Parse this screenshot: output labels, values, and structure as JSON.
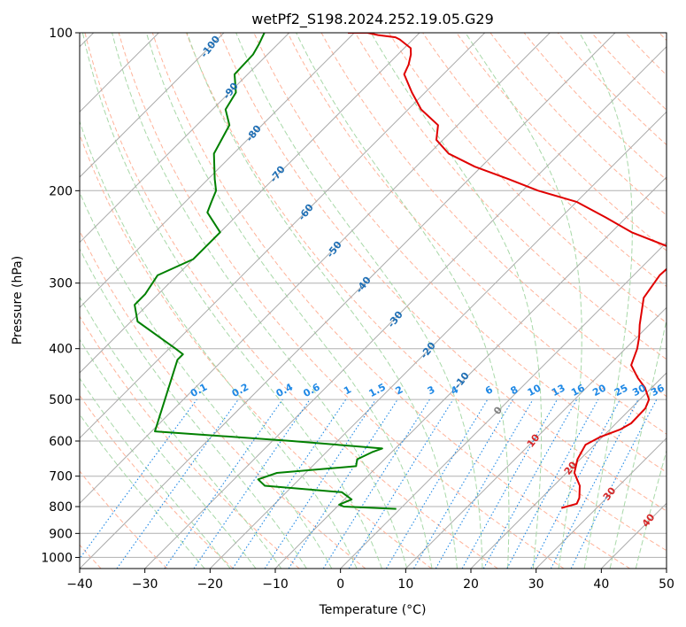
{
  "chart_data": {
    "type": "line",
    "title": "wetPf2_S198.2024.252.19.05.G29",
    "xlabel": "Temperature (°C)",
    "ylabel": "Pressure (hPa)",
    "xlim": [
      -40,
      50
    ],
    "ylim": [
      1050,
      100
    ],
    "y_scale": "log",
    "x_ticks": [
      "−40",
      "−30",
      "−20",
      "−10",
      "0",
      "10",
      "20",
      "30",
      "40",
      "50"
    ],
    "x_tick_values": [
      -40,
      -30,
      -20,
      -10,
      0,
      10,
      20,
      30,
      40,
      50
    ],
    "y_ticks": [
      "100",
      "200",
      "300",
      "400",
      "500",
      "600",
      "700",
      "800",
      "900",
      "1000"
    ],
    "y_tick_values": [
      100,
      200,
      300,
      400,
      500,
      600,
      700,
      800,
      900,
      1000
    ],
    "grid": true,
    "skew": 45,
    "isotherm_labels": [
      "-100",
      "-90",
      "-80",
      "-70",
      "-60",
      "-50",
      "-40",
      "-30",
      "-20",
      "-10",
      "0",
      "10",
      "20",
      "30",
      "40"
    ],
    "isotherm_label_values": [
      -100,
      -90,
      -80,
      -70,
      -60,
      -50,
      -40,
      -30,
      -20,
      -10,
      0,
      10,
      20,
      30,
      40
    ],
    "mixing_ratio_labels": [
      "0.1",
      "0.2",
      "0.4",
      "0.6",
      "1",
      "1.5",
      "2",
      "3",
      "4",
      "6",
      "8",
      "10",
      "13",
      "16",
      "20",
      "25",
      "30",
      "36"
    ],
    "mixing_ratio_values": [
      0.1,
      0.2,
      0.4,
      0.6,
      1,
      1.5,
      2,
      3,
      4,
      6,
      8,
      10,
      13,
      16,
      20,
      25,
      30,
      36
    ],
    "colors": {
      "temperature": "#e00000",
      "dewpoint": "#008000",
      "isotherm": "#aaaaaa",
      "dry_adiabat": "#ffb39a",
      "moist_adiabat": "#a8d8a8",
      "mixing_ratio": "#1e88e5",
      "label_cold": "#1f6fb5",
      "label_warm": "#d62728",
      "label_zero": "#7f7f7f"
    },
    "series": [
      {
        "values_x_temp_c": [
          24.6,
          26.3,
          25.8,
          24.0,
          21.2,
          19.6,
          18.6,
          19.6,
          21.6,
          22.3,
          22.2,
          21.4,
          19.0,
          16.4,
          13.4,
          11.8,
          10.3,
          8.5,
          6.8,
          5.0,
          4.0,
          4.2,
          3.0,
          -6.9,
          -13.1,
          -20.0,
          -27.6,
          -34.0,
          -41.0,
          -47.0,
          -51.0,
          -53.0,
          -58.0,
          -62.0,
          -66.0,
          -66.8,
          -68.0,
          -69.0,
          -72.0,
          -73.0,
          -76.0,
          -78.0,
          -79.0,
          -80.0,
          -81.0
        ],
        "values_y_pressure_hpa": [
          805,
          790,
          770,
          730,
          690,
          650,
          610,
          590,
          570,
          555,
          520,
          500,
          475,
          455,
          430,
          400,
          380,
          360,
          340,
          320,
          290,
          275,
          260,
          240,
          225,
          210,
          200,
          190,
          180,
          170,
          160,
          150,
          140,
          130,
          120,
          115,
          110,
          107,
          103,
          102,
          101,
          100,
          100,
          100,
          100
        ]
      },
      {
        "values_x_temp_c": [
          -0.6,
          -9.0,
          -10.0,
          -8.9,
          -11.5,
          -24.3,
          -26.3,
          -24.4,
          -13.3,
          -14.2,
          -13.0,
          -12.0,
          -27.0,
          -49.5,
          -57.0,
          -57.0,
          -59.0,
          -69.0,
          -72.0,
          -72.0,
          -73.0,
          -70.0,
          -70.0,
          -75.0,
          -76.0,
          -77.0,
          -79.0,
          -83.0,
          -85.0,
          -88.0,
          -89.0,
          -92.0,
          -92.2,
          -92.9,
          -93.8
        ],
        "values_y_pressure_hpa": [
          808,
          800,
          793,
          775,
          751,
          730,
          710,
          690,
          670,
          650,
          630,
          620,
          600,
          575,
          420,
          410,
          400,
          355,
          330,
          315,
          290,
          270,
          240,
          220,
          210,
          200,
          190,
          170,
          150,
          140,
          130,
          120,
          110,
          105,
          100
        ]
      }
    ]
  }
}
